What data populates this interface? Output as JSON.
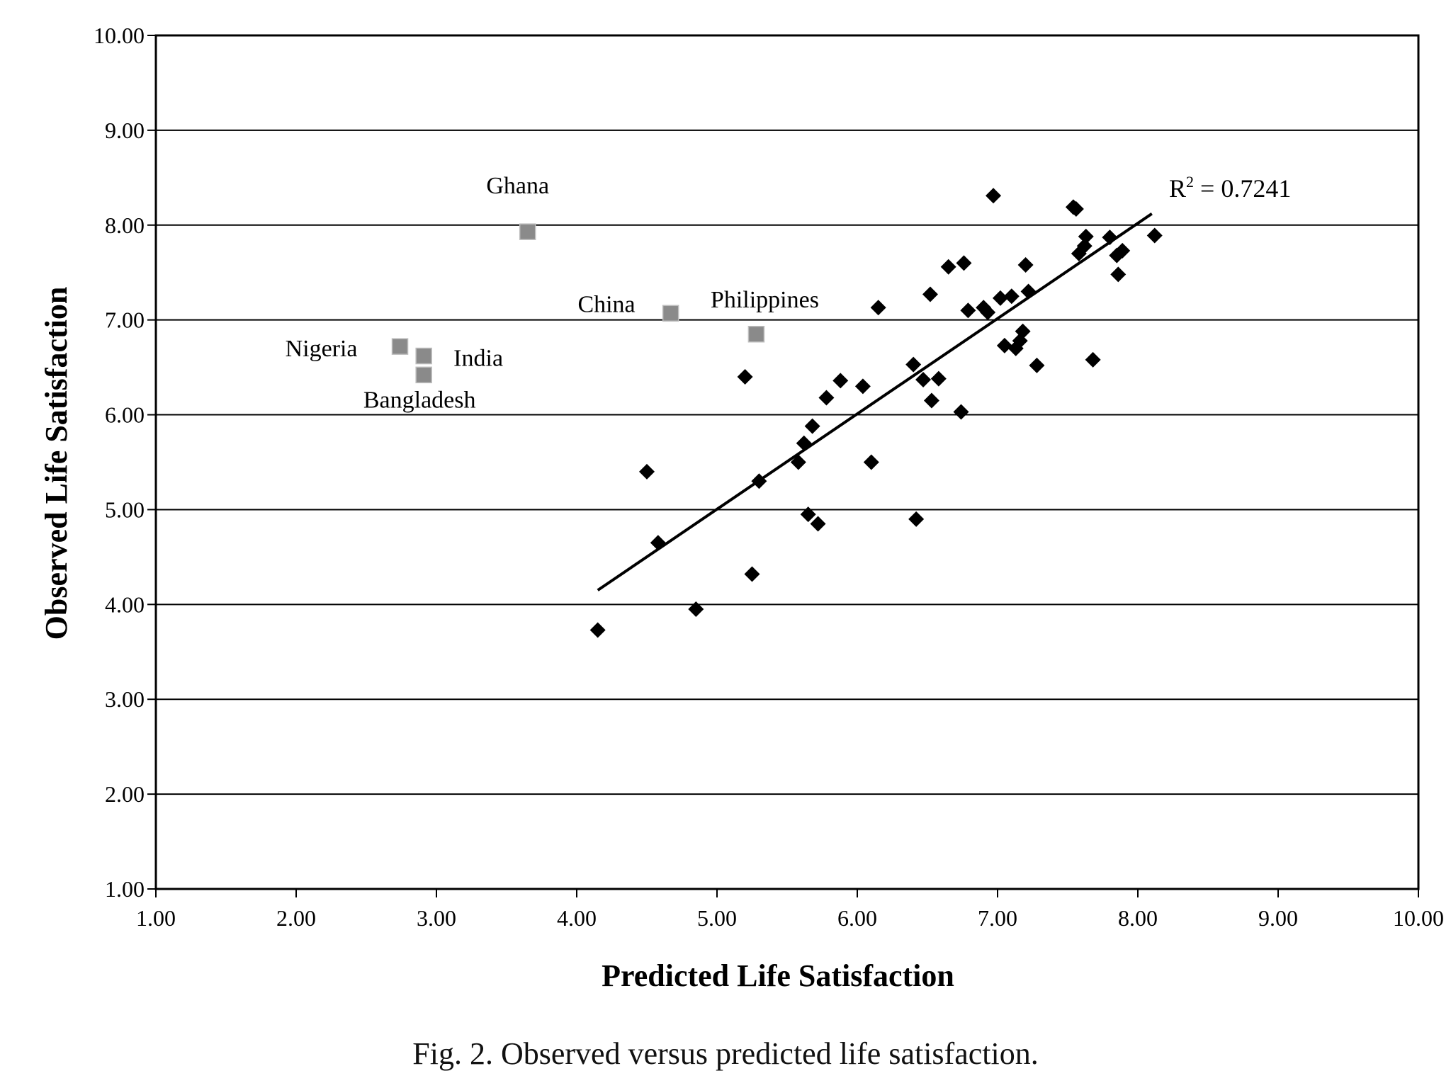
{
  "caption": "Fig. 2. Observed versus predicted life satisfaction.",
  "chart_data": {
    "type": "scatter",
    "title": "",
    "xlabel": "Predicted Life Satisfaction",
    "ylabel": "Observed Life Satisfaction",
    "xlim": [
      1.0,
      10.0
    ],
    "ylim": [
      1.0,
      10.0
    ],
    "x_ticks": [
      "1.00",
      "2.00",
      "3.00",
      "4.00",
      "5.00",
      "6.00",
      "7.00",
      "8.00",
      "9.00",
      "10.00"
    ],
    "y_ticks": [
      "1.00",
      "2.00",
      "3.00",
      "4.00",
      "5.00",
      "6.00",
      "7.00",
      "8.00",
      "9.00",
      "10.00"
    ],
    "grid": "horizontal",
    "r2_label": "R",
    "r2_sup": "2",
    "r2_value": " = 0.7241",
    "trendline": {
      "x": [
        4.15,
        8.1
      ],
      "y": [
        4.15,
        8.12
      ]
    },
    "colors": {
      "main": "#000000",
      "highlight": "#8a8a8a",
      "grid": "#000000"
    },
    "series": [
      {
        "marker": "diamond",
        "points": [
          [
            4.15,
            3.73
          ],
          [
            4.5,
            5.4
          ],
          [
            4.58,
            4.65
          ],
          [
            4.85,
            3.95
          ],
          [
            5.2,
            6.4
          ],
          [
            5.25,
            4.32
          ],
          [
            5.3,
            5.3
          ],
          [
            5.58,
            5.5
          ],
          [
            5.62,
            5.7
          ],
          [
            5.65,
            4.95
          ],
          [
            5.68,
            5.88
          ],
          [
            5.72,
            4.85
          ],
          [
            5.78,
            6.18
          ],
          [
            5.88,
            6.36
          ],
          [
            6.04,
            6.3
          ],
          [
            6.1,
            5.5
          ],
          [
            6.15,
            7.13
          ],
          [
            6.4,
            6.53
          ],
          [
            6.42,
            4.9
          ],
          [
            6.47,
            6.37
          ],
          [
            6.52,
            7.27
          ],
          [
            6.53,
            6.15
          ],
          [
            6.58,
            6.38
          ],
          [
            6.65,
            7.56
          ],
          [
            6.74,
            6.03
          ],
          [
            6.76,
            7.6
          ],
          [
            6.79,
            7.1
          ],
          [
            6.9,
            7.13
          ],
          [
            6.93,
            7.08
          ],
          [
            6.97,
            8.31
          ],
          [
            7.02,
            7.23
          ],
          [
            7.05,
            6.73
          ],
          [
            7.1,
            7.25
          ],
          [
            7.13,
            6.7
          ],
          [
            7.16,
            6.78
          ],
          [
            7.18,
            6.88
          ],
          [
            7.2,
            7.58
          ],
          [
            7.22,
            7.3
          ],
          [
            7.28,
            6.52
          ],
          [
            7.54,
            8.19
          ],
          [
            7.56,
            8.17
          ],
          [
            7.58,
            7.7
          ],
          [
            7.62,
            7.78
          ],
          [
            7.63,
            7.88
          ],
          [
            7.68,
            6.58
          ],
          [
            7.8,
            7.87
          ],
          [
            7.85,
            7.68
          ],
          [
            7.86,
            7.48
          ],
          [
            7.89,
            7.73
          ],
          [
            8.12,
            7.89
          ]
        ]
      },
      {
        "marker": "square",
        "points": [
          {
            "x": 3.65,
            "y": 7.93,
            "label": "Ghana"
          },
          {
            "x": 4.67,
            "y": 7.07,
            "label": "China"
          },
          {
            "x": 5.28,
            "y": 6.85,
            "label": "Philippines"
          },
          {
            "x": 2.74,
            "y": 6.72,
            "label": "Nigeria"
          },
          {
            "x": 2.91,
            "y": 6.62,
            "label": "India"
          },
          {
            "x": 2.91,
            "y": 6.42,
            "label": "Bangladesh"
          }
        ]
      }
    ]
  }
}
